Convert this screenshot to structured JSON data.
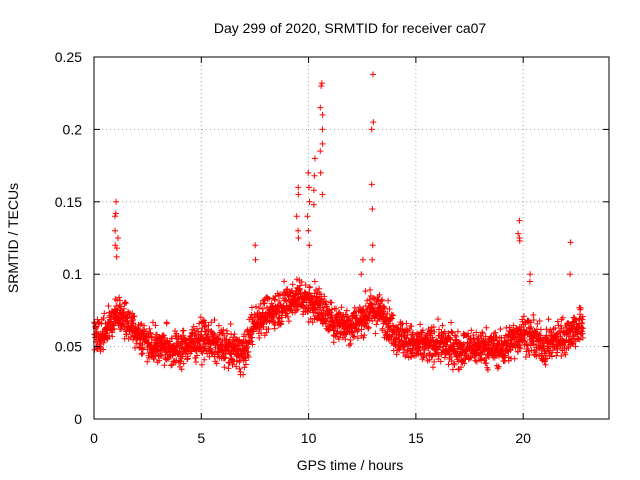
{
  "chart_data": {
    "type": "scatter",
    "title": "Day 299 of 2020, SRMTID for receiver ca07",
    "xlabel": "GPS time / hours",
    "ylabel": "SRMTID / TECUs",
    "xlim": [
      0,
      24
    ],
    "ylim": [
      0,
      0.25
    ],
    "x_ticks": [
      {
        "value": 0,
        "label": "0"
      },
      {
        "value": 5,
        "label": "5"
      },
      {
        "value": 10,
        "label": "10"
      },
      {
        "value": 15,
        "label": "15"
      },
      {
        "value": 20,
        "label": "20"
      }
    ],
    "y_ticks": [
      {
        "value": 0,
        "label": "0"
      },
      {
        "value": 0.05,
        "label": "0.05"
      },
      {
        "value": 0.1,
        "label": "0.1"
      },
      {
        "value": 0.15,
        "label": "0.15"
      },
      {
        "value": 0.2,
        "label": "0.2"
      },
      {
        "value": 0.25,
        "label": "0.25"
      }
    ],
    "grid": true,
    "marker": "+",
    "color": "#ff0000",
    "series": [
      {
        "name": "SRMTID",
        "trend": {
          "x": [
            0,
            0.5,
            1,
            1.5,
            2,
            3,
            4,
            5,
            6,
            7,
            7.5,
            8,
            9,
            9.5,
            10,
            10.5,
            11,
            12,
            13,
            13.5,
            14,
            15,
            16,
            17,
            18,
            19,
            20,
            21,
            22,
            22.8
          ],
          "y": [
            0.06,
            0.058,
            0.072,
            0.07,
            0.058,
            0.05,
            0.048,
            0.056,
            0.05,
            0.045,
            0.068,
            0.072,
            0.08,
            0.085,
            0.082,
            0.078,
            0.068,
            0.065,
            0.075,
            0.072,
            0.06,
            0.05,
            0.052,
            0.048,
            0.05,
            0.048,
            0.06,
            0.05,
            0.058,
            0.065
          ]
        },
        "spread": 0.022,
        "sample_interval_hours": 0.009,
        "x_start": 0,
        "x_end": 22.8,
        "peaks": [
          {
            "x": 1.0,
            "y": [
              0.15,
              0.142,
              0.14,
              0.13,
              0.12
            ]
          },
          {
            "x": 1.1,
            "y": [
              0.125,
              0.118,
              0.112
            ]
          },
          {
            "x": 7.5,
            "y": [
              0.12,
              0.11
            ]
          },
          {
            "x": 9.5,
            "y": [
              0.16,
              0.155,
              0.14,
              0.13,
              0.125
            ]
          },
          {
            "x": 10.0,
            "y": [
              0.17,
              0.16,
              0.15,
              0.14,
              0.13,
              0.12
            ]
          },
          {
            "x": 10.3,
            "y": [
              0.18,
              0.168,
              0.158,
              0.148
            ]
          },
          {
            "x": 10.6,
            "y": [
              0.232,
              0.23,
              0.215,
              0.21,
              0.2,
              0.19,
              0.185,
              0.17,
              0.155
            ]
          },
          {
            "x": 12.5,
            "y": [
              0.1,
              0.11
            ]
          },
          {
            "x": 13.0,
            "y": [
              0.238,
              0.205,
              0.2,
              0.162,
              0.145,
              0.12,
              0.11
            ]
          },
          {
            "x": 19.8,
            "y": [
              0.137,
              0.128,
              0.125,
              0.123
            ]
          },
          {
            "x": 20.3,
            "y": [
              0.1,
              0.095
            ]
          },
          {
            "x": 22.2,
            "y": [
              0.122,
              0.1
            ]
          }
        ]
      }
    ]
  }
}
